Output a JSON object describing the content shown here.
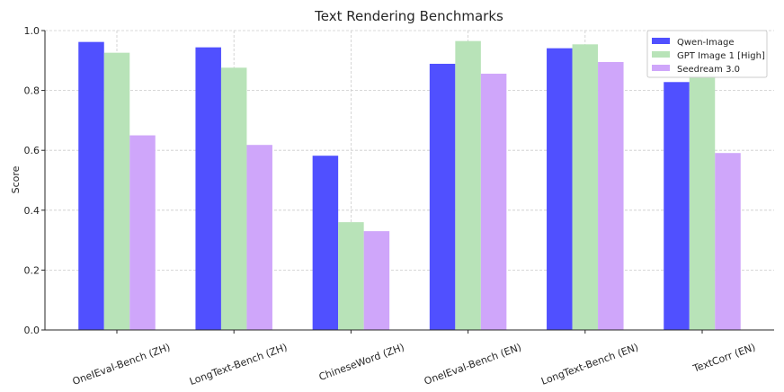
{
  "chart_data": {
    "type": "bar",
    "title": "Text Rendering Benchmarks",
    "xlabel": "",
    "ylabel": "Score",
    "ylim": [
      0,
      1.0
    ],
    "yticks": [
      0.0,
      0.2,
      0.4,
      0.6,
      0.8,
      1.0
    ],
    "grid": true,
    "legend_position": "top-right",
    "categories": [
      "OneIEval-Bench (ZH)",
      "LongText-Bench (ZH)",
      "ChineseWord (ZH)",
      "OneIEval-Bench (EN)",
      "LongText-Bench (EN)",
      "TextCorr (EN)"
    ],
    "series": [
      {
        "name": "Qwen-Image",
        "color": "#5050ff",
        "values": [
          0.962,
          0.944,
          0.582,
          0.889,
          0.941,
          0.828
        ]
      },
      {
        "name": "GPT Image 1 [High]",
        "color": "#b8e3b8",
        "values": [
          0.926,
          0.876,
          0.36,
          0.965,
          0.954,
          0.855
        ]
      },
      {
        "name": "Seedream 3.0",
        "color": "#cfa6fa",
        "values": [
          0.65,
          0.618,
          0.33,
          0.856,
          0.895,
          0.591
        ]
      }
    ]
  }
}
